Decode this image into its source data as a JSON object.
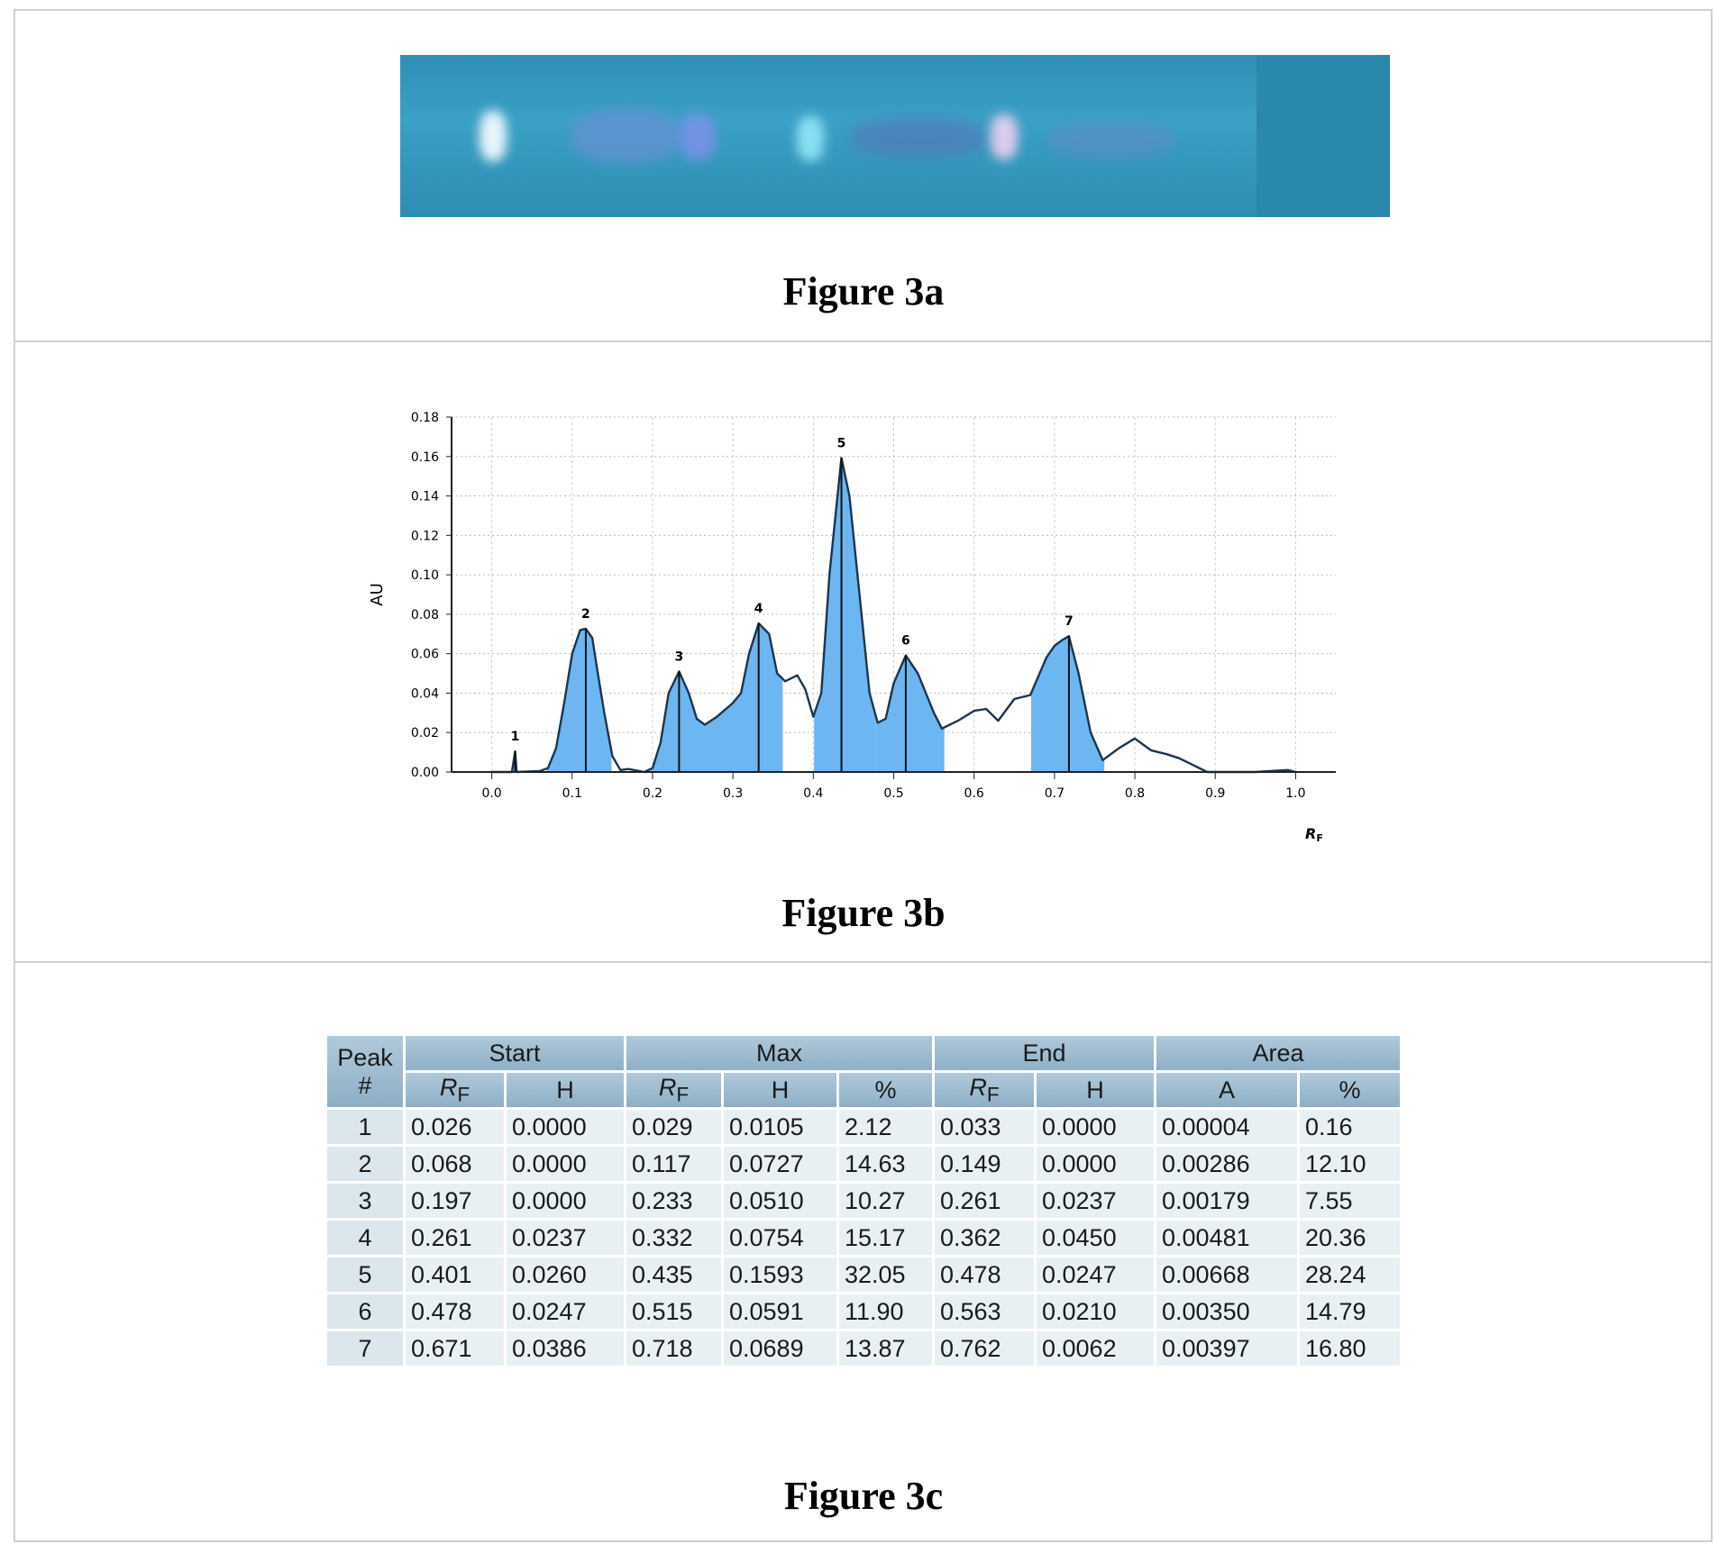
{
  "figures": {
    "a": {
      "caption": "Figure 3a"
    },
    "b": {
      "caption": "Figure 3b"
    },
    "c": {
      "caption": "Figure 3c"
    }
  },
  "chart_data": {
    "type": "line",
    "color": "#1c3550",
    "fill": "#6cb6f2",
    "y_label": "AU",
    "x_label": {
      "text": "R",
      "sub": "F"
    },
    "xlim": [
      -0.05,
      1.05
    ],
    "ylim": [
      0,
      0.18
    ],
    "grid": true,
    "xticks": [
      {
        "value": 0,
        "label": "0.0"
      },
      0.1,
      0.2,
      0.3,
      0.4,
      0.5,
      0.6,
      0.7,
      0.8,
      0.9,
      {
        "value": 1,
        "label": "1.0"
      }
    ],
    "yticks": [
      {
        "value": 0,
        "label": "0.00"
      },
      {
        "value": 0.02,
        "label": "0.02"
      },
      {
        "value": 0.04,
        "label": "0.04"
      },
      {
        "value": 0.06,
        "label": "0.06"
      },
      {
        "value": 0.08,
        "label": "0.08"
      },
      {
        "value": 0.1,
        "label": "0.10"
      },
      {
        "value": 0.12,
        "label": "0.12"
      },
      {
        "value": 0.14,
        "label": "0.14"
      },
      {
        "value": 0.16,
        "label": "0.16"
      },
      {
        "value": 0.18,
        "label": "0.18"
      }
    ],
    "x": [
      0,
      0.025,
      0.029,
      0.031,
      0.06,
      0.07,
      0.08,
      0.09,
      0.1,
      0.11,
      0.117,
      0.125,
      0.13,
      0.14,
      0.15,
      0.16,
      0.17,
      0.19,
      0.2,
      0.21,
      0.22,
      0.233,
      0.245,
      0.255,
      0.265,
      0.28,
      0.3,
      0.31,
      0.32,
      0.332,
      0.345,
      0.355,
      0.365,
      0.38,
      0.39,
      0.4,
      0.41,
      0.42,
      0.435,
      0.445,
      0.46,
      0.47,
      0.48,
      0.49,
      0.5,
      0.515,
      0.53,
      0.54,
      0.55,
      0.56,
      0.58,
      0.6,
      0.615,
      0.63,
      0.65,
      0.67,
      0.69,
      0.7,
      0.71,
      0.718,
      0.73,
      0.745,
      0.76,
      0.78,
      0.8,
      0.82,
      0.84,
      0.855,
      0.87,
      0.89,
      0.95,
      0.99,
      1.0
    ],
    "values": [
      0,
      0,
      0.0105,
      0,
      0.0005,
      0.002,
      0.012,
      0.035,
      0.06,
      0.072,
      0.0727,
      0.068,
      0.055,
      0.03,
      0.008,
      0.001,
      0.0015,
      0,
      0.002,
      0.015,
      0.04,
      0.051,
      0.04,
      0.027,
      0.024,
      0.028,
      0.035,
      0.04,
      0.06,
      0.0754,
      0.07,
      0.05,
      0.046,
      0.049,
      0.042,
      0.028,
      0.04,
      0.1,
      0.1593,
      0.14,
      0.08,
      0.04,
      0.025,
      0.027,
      0.045,
      0.0591,
      0.05,
      0.04,
      0.03,
      0.022,
      0.026,
      0.031,
      0.032,
      0.026,
      0.037,
      0.039,
      0.058,
      0.064,
      0.067,
      0.0689,
      0.05,
      0.02,
      0.006,
      0.012,
      0.017,
      0.011,
      0.009,
      0.007,
      0.004,
      0,
      0,
      0.001,
      0
    ],
    "peaks": {
      "labels": [
        "1",
        "2",
        "3",
        "4",
        "5",
        "6",
        "7"
      ],
      "start": [
        0.026,
        0.068,
        0.197,
        0.261,
        0.401,
        0.478,
        0.671
      ],
      "max": [
        0.029,
        0.117,
        0.233,
        0.332,
        0.435,
        0.515,
        0.718
      ],
      "height": [
        0.0105,
        0.0727,
        0.051,
        0.0754,
        0.1593,
        0.0591,
        0.0689
      ],
      "end": [
        0.033,
        0.149,
        0.261,
        0.362,
        0.478,
        0.563,
        0.762
      ]
    }
  },
  "table": {
    "header": {
      "peak": [
        "Peak",
        "#"
      ],
      "groups": [
        "Start",
        "Max",
        "End",
        "Area"
      ],
      "columns": [
        {
          "text": "R",
          "sub": "F"
        },
        "H",
        {
          "text": "R",
          "sub": "F"
        },
        "H",
        "%",
        {
          "text": "R",
          "sub": "F"
        },
        "H",
        "A",
        "%"
      ]
    },
    "rows": [
      [
        "1",
        "0.026",
        "0.0000",
        "0.029",
        "0.0105",
        "2.12",
        "0.033",
        "0.0000",
        "0.00004",
        "0.16"
      ],
      [
        "2",
        "0.068",
        "0.0000",
        "0.117",
        "0.0727",
        "14.63",
        "0.149",
        "0.0000",
        "0.00286",
        "12.10"
      ],
      [
        "3",
        "0.197",
        "0.0000",
        "0.233",
        "0.0510",
        "10.27",
        "0.261",
        "0.0237",
        "0.00179",
        "7.55"
      ],
      [
        "4",
        "0.261",
        "0.0237",
        "0.332",
        "0.0754",
        "15.17",
        "0.362",
        "0.0450",
        "0.00481",
        "20.36"
      ],
      [
        "5",
        "0.401",
        "0.0260",
        "0.435",
        "0.1593",
        "32.05",
        "0.478",
        "0.0247",
        "0.00668",
        "28.24"
      ],
      [
        "6",
        "0.478",
        "0.0247",
        "0.515",
        "0.0591",
        "11.90",
        "0.563",
        "0.0210",
        "0.00350",
        "14.79"
      ],
      [
        "7",
        "0.671",
        "0.0386",
        "0.718",
        "0.0689",
        "13.87",
        "0.762",
        "0.0062",
        "0.00397",
        "16.80"
      ]
    ]
  }
}
